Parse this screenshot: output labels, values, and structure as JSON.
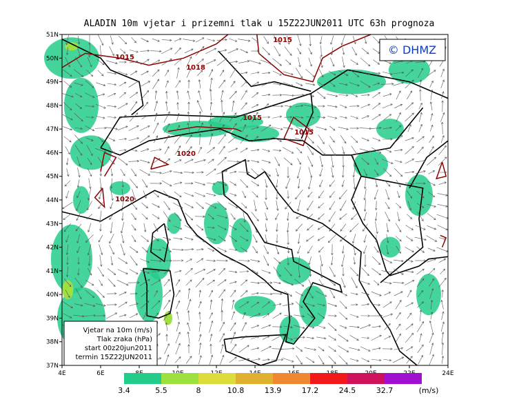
{
  "title": "ALADIN 10m vjetar i prizemni tlak u 15Z22JUN2011 UTC 63h prognoza",
  "logo": "© DHMZ",
  "lat_labels": [
    "51N",
    "50N",
    "49N",
    "48N",
    "47N",
    "46N",
    "45N",
    "44N",
    "43N",
    "42N",
    "41N",
    "40N",
    "39N",
    "38N",
    "37N"
  ],
  "lon_labels": [
    "4E",
    "6E",
    "8E",
    "10E",
    "12E",
    "14E",
    "16E",
    "18E",
    "20E",
    "22E",
    "24E"
  ],
  "isobar_labels": [
    "1015",
    "1018",
    "1015",
    "1015",
    "1015",
    "1020",
    "1020"
  ],
  "info_box": [
    "Vjetar na 10m (m/s)",
    "Tlak zraka (hPa)",
    "start 00z20jun2011",
    "termin 15Z22JUN2011"
  ],
  "legend": {
    "levels": [
      3.4,
      5.5,
      8,
      10.8,
      13.9,
      17.2,
      24.5,
      32.7
    ],
    "unit": "(m/s)"
  }
}
